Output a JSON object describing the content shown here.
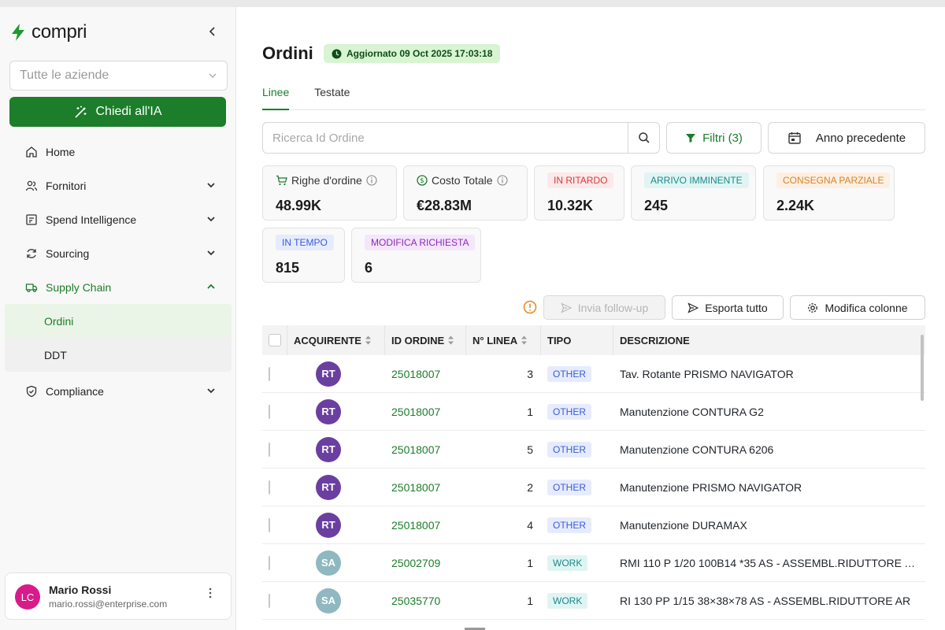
{
  "app": {
    "name": "compri"
  },
  "sidebar": {
    "company_select": {
      "placeholder": "Tutte le aziende"
    },
    "ai_button": "Chiedi all'IA",
    "items": [
      {
        "label": "Home",
        "icon": "home-icon"
      },
      {
        "label": "Fornitori",
        "icon": "users-icon",
        "expandable": true
      },
      {
        "label": "Spend Intelligence",
        "icon": "chart-icon",
        "expandable": true
      },
      {
        "label": "Sourcing",
        "icon": "refresh-icon",
        "expandable": true
      },
      {
        "label": "Supply Chain",
        "icon": "truck-icon",
        "expandable": true,
        "expanded": true
      },
      {
        "label": "Compliance",
        "icon": "shield-icon",
        "expandable": true
      }
    ],
    "supply_chain_sub": [
      {
        "label": "Ordini",
        "selected": true
      },
      {
        "label": "DDT"
      }
    ],
    "user": {
      "initials": "LC",
      "name": "Mario Rossi",
      "email": "mario.rossi@enterprise.com"
    }
  },
  "page": {
    "title": "Ordini",
    "updated": "Aggiornato 09 Oct 2025 17:03:18",
    "tabs": [
      {
        "label": "Linee",
        "active": true
      },
      {
        "label": "Testate"
      }
    ],
    "search_placeholder": "Ricerca Id Ordine",
    "filters_label": "Filtri (3)",
    "period_label": "Anno precedente"
  },
  "kpis": {
    "righe": {
      "label": "Righe d'ordine",
      "value": "48.99K"
    },
    "costo": {
      "label": "Costo Totale",
      "value": "€28.83M"
    },
    "ritardo": {
      "label": "IN RITARDO",
      "value": "10.32K",
      "color": "#d93a3a",
      "bg": "#fde9e9"
    },
    "arrivo": {
      "label": "ARRIVO IMMINENTE",
      "value": "245",
      "color": "#1b8a8a",
      "bg": "#e0f5f3"
    },
    "parziale": {
      "label": "CONSEGNA PARZIALE",
      "value": "2.24K",
      "color": "#d9822b",
      "bg": "#fdf0e2"
    },
    "tempo": {
      "label": "IN TEMPO",
      "value": "815",
      "color": "#3a5bd9",
      "bg": "#e6ecfd"
    },
    "modifica": {
      "label": "MODIFICA RICHIESTA",
      "value": "6",
      "color": "#8a2bb8",
      "bg": "#f4e6fb"
    }
  },
  "actions": {
    "follow_up": "Invia follow-up",
    "export": "Esporta tutto",
    "columns": "Modifica colonne"
  },
  "table": {
    "headers": {
      "acquirente": "ACQUIRENTE",
      "id": "ID ORDINE",
      "linea": "N° LINEA",
      "tipo": "TIPO",
      "descrizione": "DESCRIZIONE"
    },
    "rows": [
      {
        "initials": "RT",
        "av_color": "#6b3fa0",
        "id": "25018007",
        "linea": "3",
        "tipo": "OTHER",
        "descrizione": "Tav. Rotante PRISMO NAVIGATOR"
      },
      {
        "initials": "RT",
        "av_color": "#6b3fa0",
        "id": "25018007",
        "linea": "1",
        "tipo": "OTHER",
        "descrizione": "Manutenzione CONTURA G2"
      },
      {
        "initials": "RT",
        "av_color": "#6b3fa0",
        "id": "25018007",
        "linea": "5",
        "tipo": "OTHER",
        "descrizione": "Manutenzione CONTURA 6206"
      },
      {
        "initials": "RT",
        "av_color": "#6b3fa0",
        "id": "25018007",
        "linea": "2",
        "tipo": "OTHER",
        "descrizione": "Manutenzione PRISMO NAVIGATOR"
      },
      {
        "initials": "RT",
        "av_color": "#6b3fa0",
        "id": "25018007",
        "linea": "4",
        "tipo": "OTHER",
        "descrizione": "Manutenzione DURAMAX"
      },
      {
        "initials": "SA",
        "av_color": "#8fb8c0",
        "id": "25002709",
        "linea": "1",
        "tipo": "WORK",
        "descrizione": "RMI 110 P 1/20 100B14 *35 AS - ASSEMBL.RIDUTTORE A..."
      },
      {
        "initials": "SA",
        "av_color": "#8fb8c0",
        "id": "25035770",
        "linea": "1",
        "tipo": "WORK",
        "descrizione": "RI 130 PP 1/15 38×38×78 AS - ASSEMBL.RIDUTTORE AR"
      }
    ]
  },
  "colors": {
    "brand": "#1c7d2a"
  }
}
